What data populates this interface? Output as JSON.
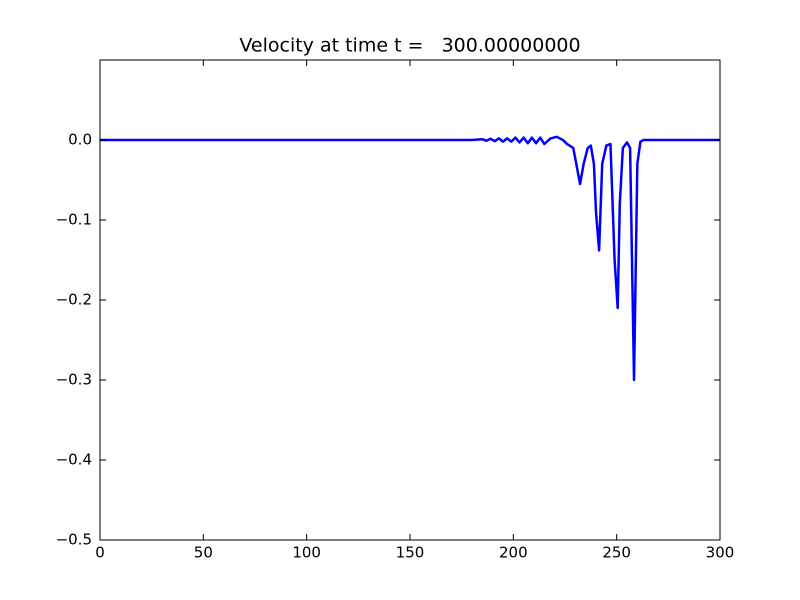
{
  "chart_data": {
    "type": "line",
    "title": "Velocity at time t =   300.00000000",
    "x": [
      0,
      180,
      185,
      187,
      189,
      191,
      193,
      195,
      197,
      199,
      201,
      203,
      205,
      207,
      209,
      211,
      213,
      215,
      218,
      221,
      224,
      226,
      229,
      232.3,
      234,
      236,
      237.5,
      239,
      240,
      241.5,
      243,
      245,
      247,
      249,
      250.5,
      251.5,
      253,
      255,
      256.5,
      258.4,
      260,
      261.5,
      263,
      300
    ],
    "series": [
      {
        "color": "#0000ff",
        "values": [
          0,
          0,
          0.001,
          -0.001,
          0.0015,
          -0.0015,
          0.002,
          -0.002,
          0.002,
          -0.002,
          0.003,
          -0.003,
          0.003,
          -0.004,
          0.003,
          -0.004,
          0.003,
          -0.005,
          0.002,
          0.004,
          0,
          -0.005,
          -0.01,
          -0.055,
          -0.03,
          -0.01,
          -0.007,
          -0.03,
          -0.09,
          -0.138,
          -0.03,
          -0.007,
          -0.005,
          -0.15,
          -0.21,
          -0.08,
          -0.01,
          -0.003,
          -0.01,
          -0.3,
          -0.03,
          -0.002,
          0,
          0
        ]
      }
    ],
    "xlim": [
      0,
      300
    ],
    "ylim": [
      -0.5,
      0.1
    ],
    "xticks": [
      0,
      50,
      100,
      150,
      200,
      250,
      300
    ],
    "yticks": [
      {
        "value": -0.5,
        "label": "−0.5"
      },
      {
        "value": -0.4,
        "label": "−0.4"
      },
      {
        "value": -0.3,
        "label": "−0.3"
      },
      {
        "value": -0.2,
        "label": "−0.2"
      },
      {
        "value": -0.1,
        "label": "−0.1"
      },
      {
        "value": 0,
        "label": "0.0"
      }
    ],
    "grid": false
  }
}
